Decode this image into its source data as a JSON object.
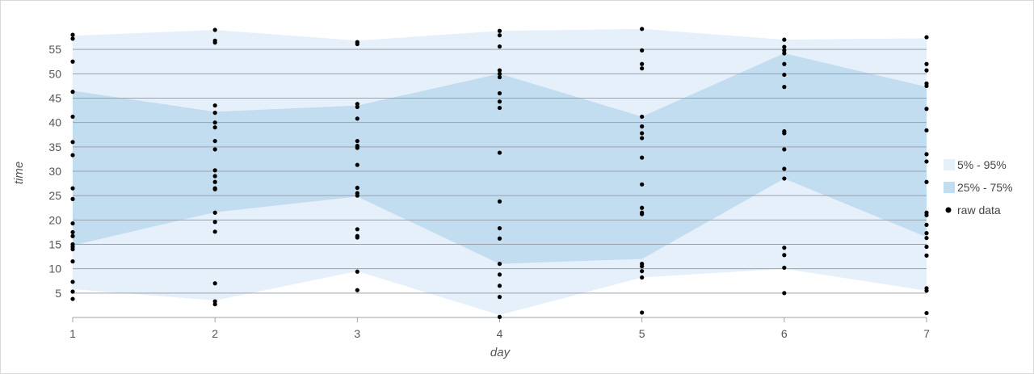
{
  "chart_data": {
    "type": "area",
    "title": "",
    "xlabel": "day",
    "ylabel": "time",
    "x": [
      1,
      2,
      3,
      4,
      5,
      6,
      7
    ],
    "xlim": [
      1,
      7
    ],
    "ylim": [
      0,
      60
    ],
    "y_ticks": [
      5,
      10,
      15,
      20,
      25,
      30,
      35,
      40,
      45,
      50,
      55
    ],
    "grid": true,
    "legend_position": "right",
    "bands": [
      {
        "name": "5% - 95%",
        "color": "#e6f0fa",
        "lower": [
          5.8,
          3.5,
          9.5,
          0.5,
          8.2,
          10.0,
          5.5
        ],
        "upper": [
          57.8,
          59.0,
          56.8,
          58.8,
          59.2,
          57.0,
          57.3
        ]
      },
      {
        "name": "25% - 75%",
        "color": "#c2dcf0",
        "lower": [
          14.8,
          21.6,
          24.8,
          11.0,
          12.0,
          28.5,
          16.5
        ],
        "upper": [
          46.5,
          42.2,
          43.5,
          50.0,
          41.2,
          54.2,
          47.3
        ]
      }
    ],
    "raw_data": {
      "name": "raw data",
      "color": "#000000",
      "points": [
        {
          "x": 1,
          "values": [
            58.0,
            57.2,
            52.5,
            46.3,
            41.2,
            36.0,
            33.3,
            26.5,
            24.3,
            19.3,
            17.5,
            16.7,
            15.0,
            14.5,
            14.0,
            11.5,
            7.3,
            5.3,
            3.8
          ]
        },
        {
          "x": 2,
          "values": [
            59.0,
            56.8,
            56.4,
            43.5,
            42.0,
            40.0,
            39.0,
            36.2,
            34.5,
            30.2,
            29.0,
            27.8,
            26.5,
            26.3,
            21.5,
            19.6,
            17.6,
            7.0,
            3.3,
            2.7
          ]
        },
        {
          "x": 3,
          "values": [
            56.5,
            56.1,
            43.8,
            43.2,
            40.8,
            36.2,
            35.2,
            34.8,
            31.3,
            26.6,
            25.5,
            25.0,
            18.1,
            16.7,
            16.4,
            9.4,
            5.6
          ]
        },
        {
          "x": 4,
          "values": [
            58.8,
            57.9,
            55.6,
            50.7,
            50.0,
            49.3,
            46.0,
            44.3,
            43.0,
            33.8,
            23.8,
            18.3,
            16.2,
            11.0,
            8.8,
            6.5,
            4.2,
            0.1
          ]
        },
        {
          "x": 5,
          "values": [
            59.2,
            54.8,
            52.0,
            51.1,
            41.2,
            39.2,
            37.8,
            36.8,
            32.8,
            27.3,
            22.5,
            21.5,
            21.2,
            11.0,
            10.5,
            9.5,
            8.2,
            1.0
          ]
        },
        {
          "x": 6,
          "values": [
            57.0,
            55.5,
            54.8,
            54.2,
            52.0,
            49.8,
            47.3,
            38.2,
            37.8,
            34.5,
            30.5,
            28.5,
            14.3,
            12.8,
            10.2,
            5.0
          ]
        },
        {
          "x": 7,
          "values": [
            57.5,
            52.0,
            50.7,
            48.0,
            47.5,
            42.8,
            38.4,
            33.5,
            32.0,
            27.8,
            21.5,
            21.0,
            19.0,
            17.3,
            16.3,
            14.5,
            12.7,
            6.0,
            5.5,
            0.9
          ]
        }
      ]
    }
  }
}
